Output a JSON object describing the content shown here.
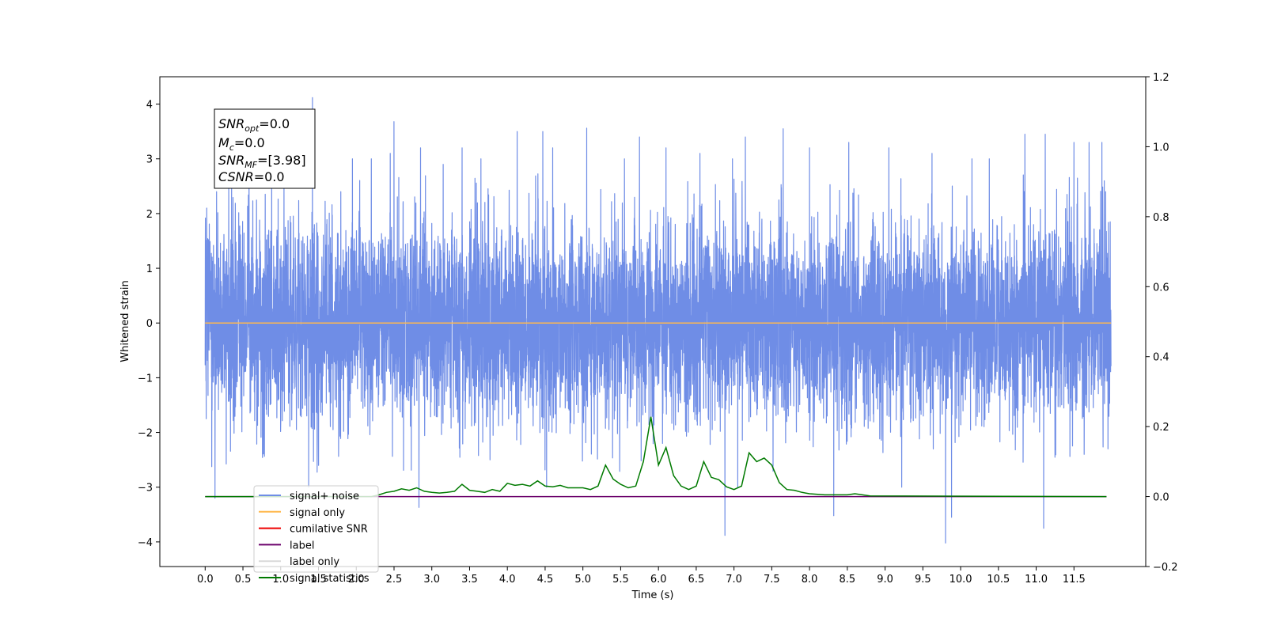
{
  "chart_data": {
    "type": "line",
    "title": "",
    "xlabel": "Time (s)",
    "ylabel": "Whitened strain",
    "ylabel_right": "",
    "xlim": [
      -0.6,
      12.45
    ],
    "ylim": [
      -4.45,
      4.5
    ],
    "ylim_right": [
      -0.2,
      1.2
    ],
    "x_ticks": [
      0.0,
      0.5,
      1.0,
      1.5,
      2.0,
      2.5,
      3.0,
      3.5,
      4.0,
      4.5,
      5.0,
      5.5,
      6.0,
      6.5,
      7.0,
      7.5,
      8.0,
      8.5,
      9.0,
      9.5,
      10.0,
      10.5,
      11.0,
      11.5
    ],
    "x_tick_labels": [
      "0.0",
      "0.5",
      "1.0",
      "1.5",
      "2.0",
      "2.5",
      "3.0",
      "3.5",
      "4.0",
      "4.5",
      "5.0",
      "5.5",
      "6.0",
      "6.5",
      "7.0",
      "7.5",
      "8.0",
      "8.5",
      "9.0",
      "9.5",
      "10.0",
      "10.5",
      "11.0",
      "11.5"
    ],
    "y_ticks": [
      -4,
      -3,
      -2,
      -1,
      0,
      1,
      2,
      3,
      4
    ],
    "y_tick_labels": [
      "−4",
      "−3",
      "−2",
      "−1",
      "0",
      "1",
      "2",
      "3",
      "4"
    ],
    "y_ticks_right": [
      -0.2,
      0.0,
      0.2,
      0.4,
      0.6,
      0.8,
      1.0,
      1.2
    ],
    "y_tick_labels_right": [
      "−0.2",
      "0.0",
      "0.2",
      "0.4",
      "0.6",
      "0.8",
      "1.0",
      "1.2"
    ],
    "grid": false,
    "legend_position": "lower-left",
    "series": [
      {
        "name": "signal+ noise",
        "color": "#6f8de6",
        "axis": "left",
        "style": "noise",
        "x_range": [
          0.0,
          11.99
        ],
        "typical_std": 0.9,
        "approx_envelope": [
          -2.6,
          2.6
        ],
        "peaks": [
          {
            "x": 0.02,
            "y": 2.1
          },
          {
            "x": 0.13,
            "y": -3.2
          },
          {
            "x": 0.15,
            "y": 2.4
          },
          {
            "x": 0.35,
            "y": 3.0
          },
          {
            "x": 0.58,
            "y": 3.2
          },
          {
            "x": 0.88,
            "y": 3.3
          },
          {
            "x": 1.37,
            "y": -3.0
          },
          {
            "x": 1.42,
            "y": 4.12
          },
          {
            "x": 1.5,
            "y": -2.6
          },
          {
            "x": 1.95,
            "y": 3.0
          },
          {
            "x": 2.2,
            "y": 3.0
          },
          {
            "x": 2.45,
            "y": 3.1
          },
          {
            "x": 2.5,
            "y": 3.68
          },
          {
            "x": 2.83,
            "y": -3.37
          },
          {
            "x": 2.85,
            "y": 3.2
          },
          {
            "x": 3.15,
            "y": 2.9
          },
          {
            "x": 3.4,
            "y": 3.2
          },
          {
            "x": 3.65,
            "y": 3.0
          },
          {
            "x": 4.13,
            "y": 3.5
          },
          {
            "x": 4.47,
            "y": 3.5
          },
          {
            "x": 4.52,
            "y": -3.0
          },
          {
            "x": 4.6,
            "y": 3.2
          },
          {
            "x": 5.05,
            "y": 3.56
          },
          {
            "x": 5.55,
            "y": 3.0
          },
          {
            "x": 5.75,
            "y": 3.4
          },
          {
            "x": 6.1,
            "y": 3.2
          },
          {
            "x": 6.55,
            "y": 3.1
          },
          {
            "x": 6.88,
            "y": -3.88
          },
          {
            "x": 6.98,
            "y": 3.0
          },
          {
            "x": 7.05,
            "y": -3.0
          },
          {
            "x": 7.15,
            "y": 3.4
          },
          {
            "x": 7.65,
            "y": 3.55
          },
          {
            "x": 8.0,
            "y": 3.2
          },
          {
            "x": 8.32,
            "y": -3.52
          },
          {
            "x": 8.52,
            "y": 3.3
          },
          {
            "x": 9.05,
            "y": 3.2
          },
          {
            "x": 9.22,
            "y": -3.0
          },
          {
            "x": 9.62,
            "y": 3.1
          },
          {
            "x": 9.8,
            "y": -4.02
          },
          {
            "x": 9.88,
            "y": -3.55
          },
          {
            "x": 10.15,
            "y": 3.0
          },
          {
            "x": 10.38,
            "y": 3.0
          },
          {
            "x": 10.85,
            "y": 3.45
          },
          {
            "x": 11.1,
            "y": -3.75
          },
          {
            "x": 11.12,
            "y": 3.45
          },
          {
            "x": 11.5,
            "y": 3.3
          },
          {
            "x": 11.7,
            "y": 3.3
          },
          {
            "x": 11.87,
            "y": 3.3
          },
          {
            "x": 11.92,
            "y": 2.4
          },
          {
            "x": 11.95,
            "y": -2.3
          }
        ]
      },
      {
        "name": "signal only",
        "color": "#ffb84d",
        "axis": "left",
        "x": [
          0.0,
          11.99
        ],
        "y": [
          0.0,
          0.0
        ]
      },
      {
        "name": "cumilative SNR",
        "color": "#ee0000",
        "axis": "right",
        "x": [],
        "y": []
      },
      {
        "name": "label",
        "color": "#6a006a",
        "axis": "right",
        "x": [
          0.0,
          11.93
        ],
        "y": [
          0.0,
          0.0
        ]
      },
      {
        "name": "label only",
        "color": "#d9d9d9",
        "axis": "right",
        "x": [],
        "y": []
      },
      {
        "name": "signal statistics",
        "color": "#007a00",
        "axis": "right",
        "x": [
          0.0,
          2.2,
          2.3,
          2.4,
          2.5,
          2.6,
          2.7,
          2.8,
          2.9,
          3.0,
          3.1,
          3.2,
          3.3,
          3.4,
          3.5,
          3.6,
          3.7,
          3.8,
          3.9,
          4.0,
          4.1,
          4.2,
          4.3,
          4.4,
          4.5,
          4.6,
          4.7,
          4.8,
          4.9,
          5.0,
          5.1,
          5.2,
          5.3,
          5.4,
          5.5,
          5.6,
          5.7,
          5.8,
          5.9,
          6.0,
          6.1,
          6.2,
          6.3,
          6.4,
          6.5,
          6.6,
          6.7,
          6.8,
          6.9,
          7.0,
          7.1,
          7.2,
          7.3,
          7.4,
          7.5,
          7.6,
          7.7,
          7.8,
          7.9,
          8.0,
          8.2,
          8.5,
          8.6,
          8.8,
          11.93
        ],
        "y": [
          0.0,
          0.0,
          0.005,
          0.012,
          0.015,
          0.022,
          0.018,
          0.025,
          0.015,
          0.012,
          0.01,
          0.012,
          0.015,
          0.035,
          0.018,
          0.015,
          0.012,
          0.02,
          0.015,
          0.038,
          0.032,
          0.035,
          0.03,
          0.045,
          0.03,
          0.028,
          0.032,
          0.025,
          0.025,
          0.025,
          0.02,
          0.03,
          0.09,
          0.05,
          0.035,
          0.025,
          0.03,
          0.1,
          0.228,
          0.09,
          0.14,
          0.06,
          0.03,
          0.02,
          0.03,
          0.1,
          0.055,
          0.048,
          0.028,
          0.02,
          0.03,
          0.125,
          0.1,
          0.11,
          0.09,
          0.04,
          0.02,
          0.018,
          0.012,
          0.008,
          0.005,
          0.005,
          0.008,
          0.002,
          0.0
        ]
      }
    ]
  },
  "info_box": {
    "line1_base": "SNR",
    "line1_sub": "opt",
    "line1_value": "=0.0",
    "line2_base": "M",
    "line2_sub": "c",
    "line2_value": "=0.0",
    "line3_base": "SNR",
    "line3_sub": "MF",
    "line3_value": "=[3.98]",
    "line4_base": "CSNR",
    "line4_sub": "",
    "line4_value": "=0.0"
  }
}
